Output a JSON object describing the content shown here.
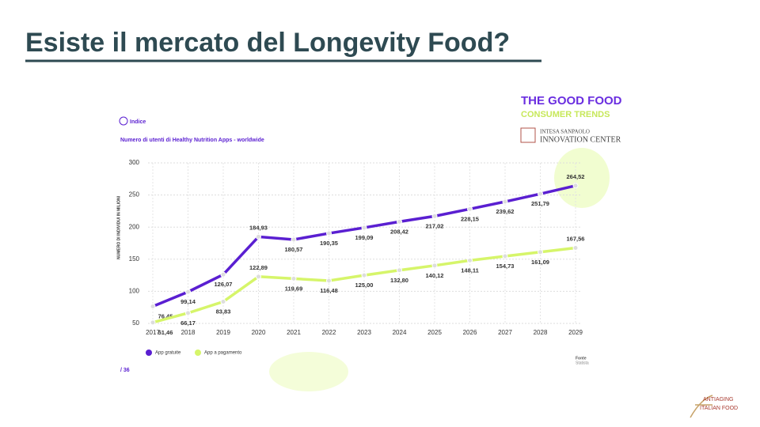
{
  "slide": {
    "title": "Esiste il mercato del Longevity Food?",
    "index_link": "Indice",
    "brand_title": "THE GOOD FOOD",
    "brand_subtitle": "CONSUMER TRENDS",
    "partner_line1": "INTESA SANPAOLO",
    "partner_line2": "INNOVATION CENTER",
    "source_label": "Fonte",
    "source": "Statista",
    "page": "/ 36",
    "logo_line1": "ANTIAGING",
    "logo_line2": "ITALIAN FOOD"
  },
  "chart_data": {
    "type": "line",
    "title": "Numero di utenti di Healthy Nutrition Apps - worldwide",
    "y_label": "NUMERO DI INDIVIDUI IN MILIONI",
    "categories": [
      "2017",
      "2018",
      "2019",
      "2020",
      "2021",
      "2022",
      "2023",
      "2024",
      "2025",
      "2026",
      "2027",
      "2028",
      "2029"
    ],
    "series": [
      {
        "name": "App gratuite",
        "color": "#5a1fd1",
        "values": [
          76.45,
          99.14,
          126.07,
          184.93,
          180.57,
          190.35,
          199.09,
          208.42,
          217.02,
          228.15,
          239.62,
          251.79,
          264.52
        ],
        "value_labels": [
          "76,45",
          "99,14",
          "126,07",
          "184,93",
          "180,57",
          "190,35",
          "199,09",
          "208,42",
          "217,02",
          "228,15",
          "239,62",
          "251,79",
          "264,52"
        ]
      },
      {
        "name": "App a pagamento",
        "color": "#d6f56a",
        "values": [
          51.46,
          66.17,
          83.83,
          122.89,
          119.69,
          116.48,
          125.0,
          132.8,
          140.12,
          148.11,
          154.73,
          161.09,
          167.56
        ],
        "value_labels": [
          "51,46",
          "66,17",
          "83,83",
          "122,89",
          "119,69",
          "116,48",
          "125,00",
          "132,80",
          "140,12",
          "148,11",
          "154,73",
          "161,09",
          "167,56"
        ]
      }
    ],
    "ylim": [
      50,
      300
    ],
    "yticks": [
      50,
      100,
      150,
      200,
      250,
      300
    ],
    "grid": true,
    "legend": "bottom-left"
  }
}
